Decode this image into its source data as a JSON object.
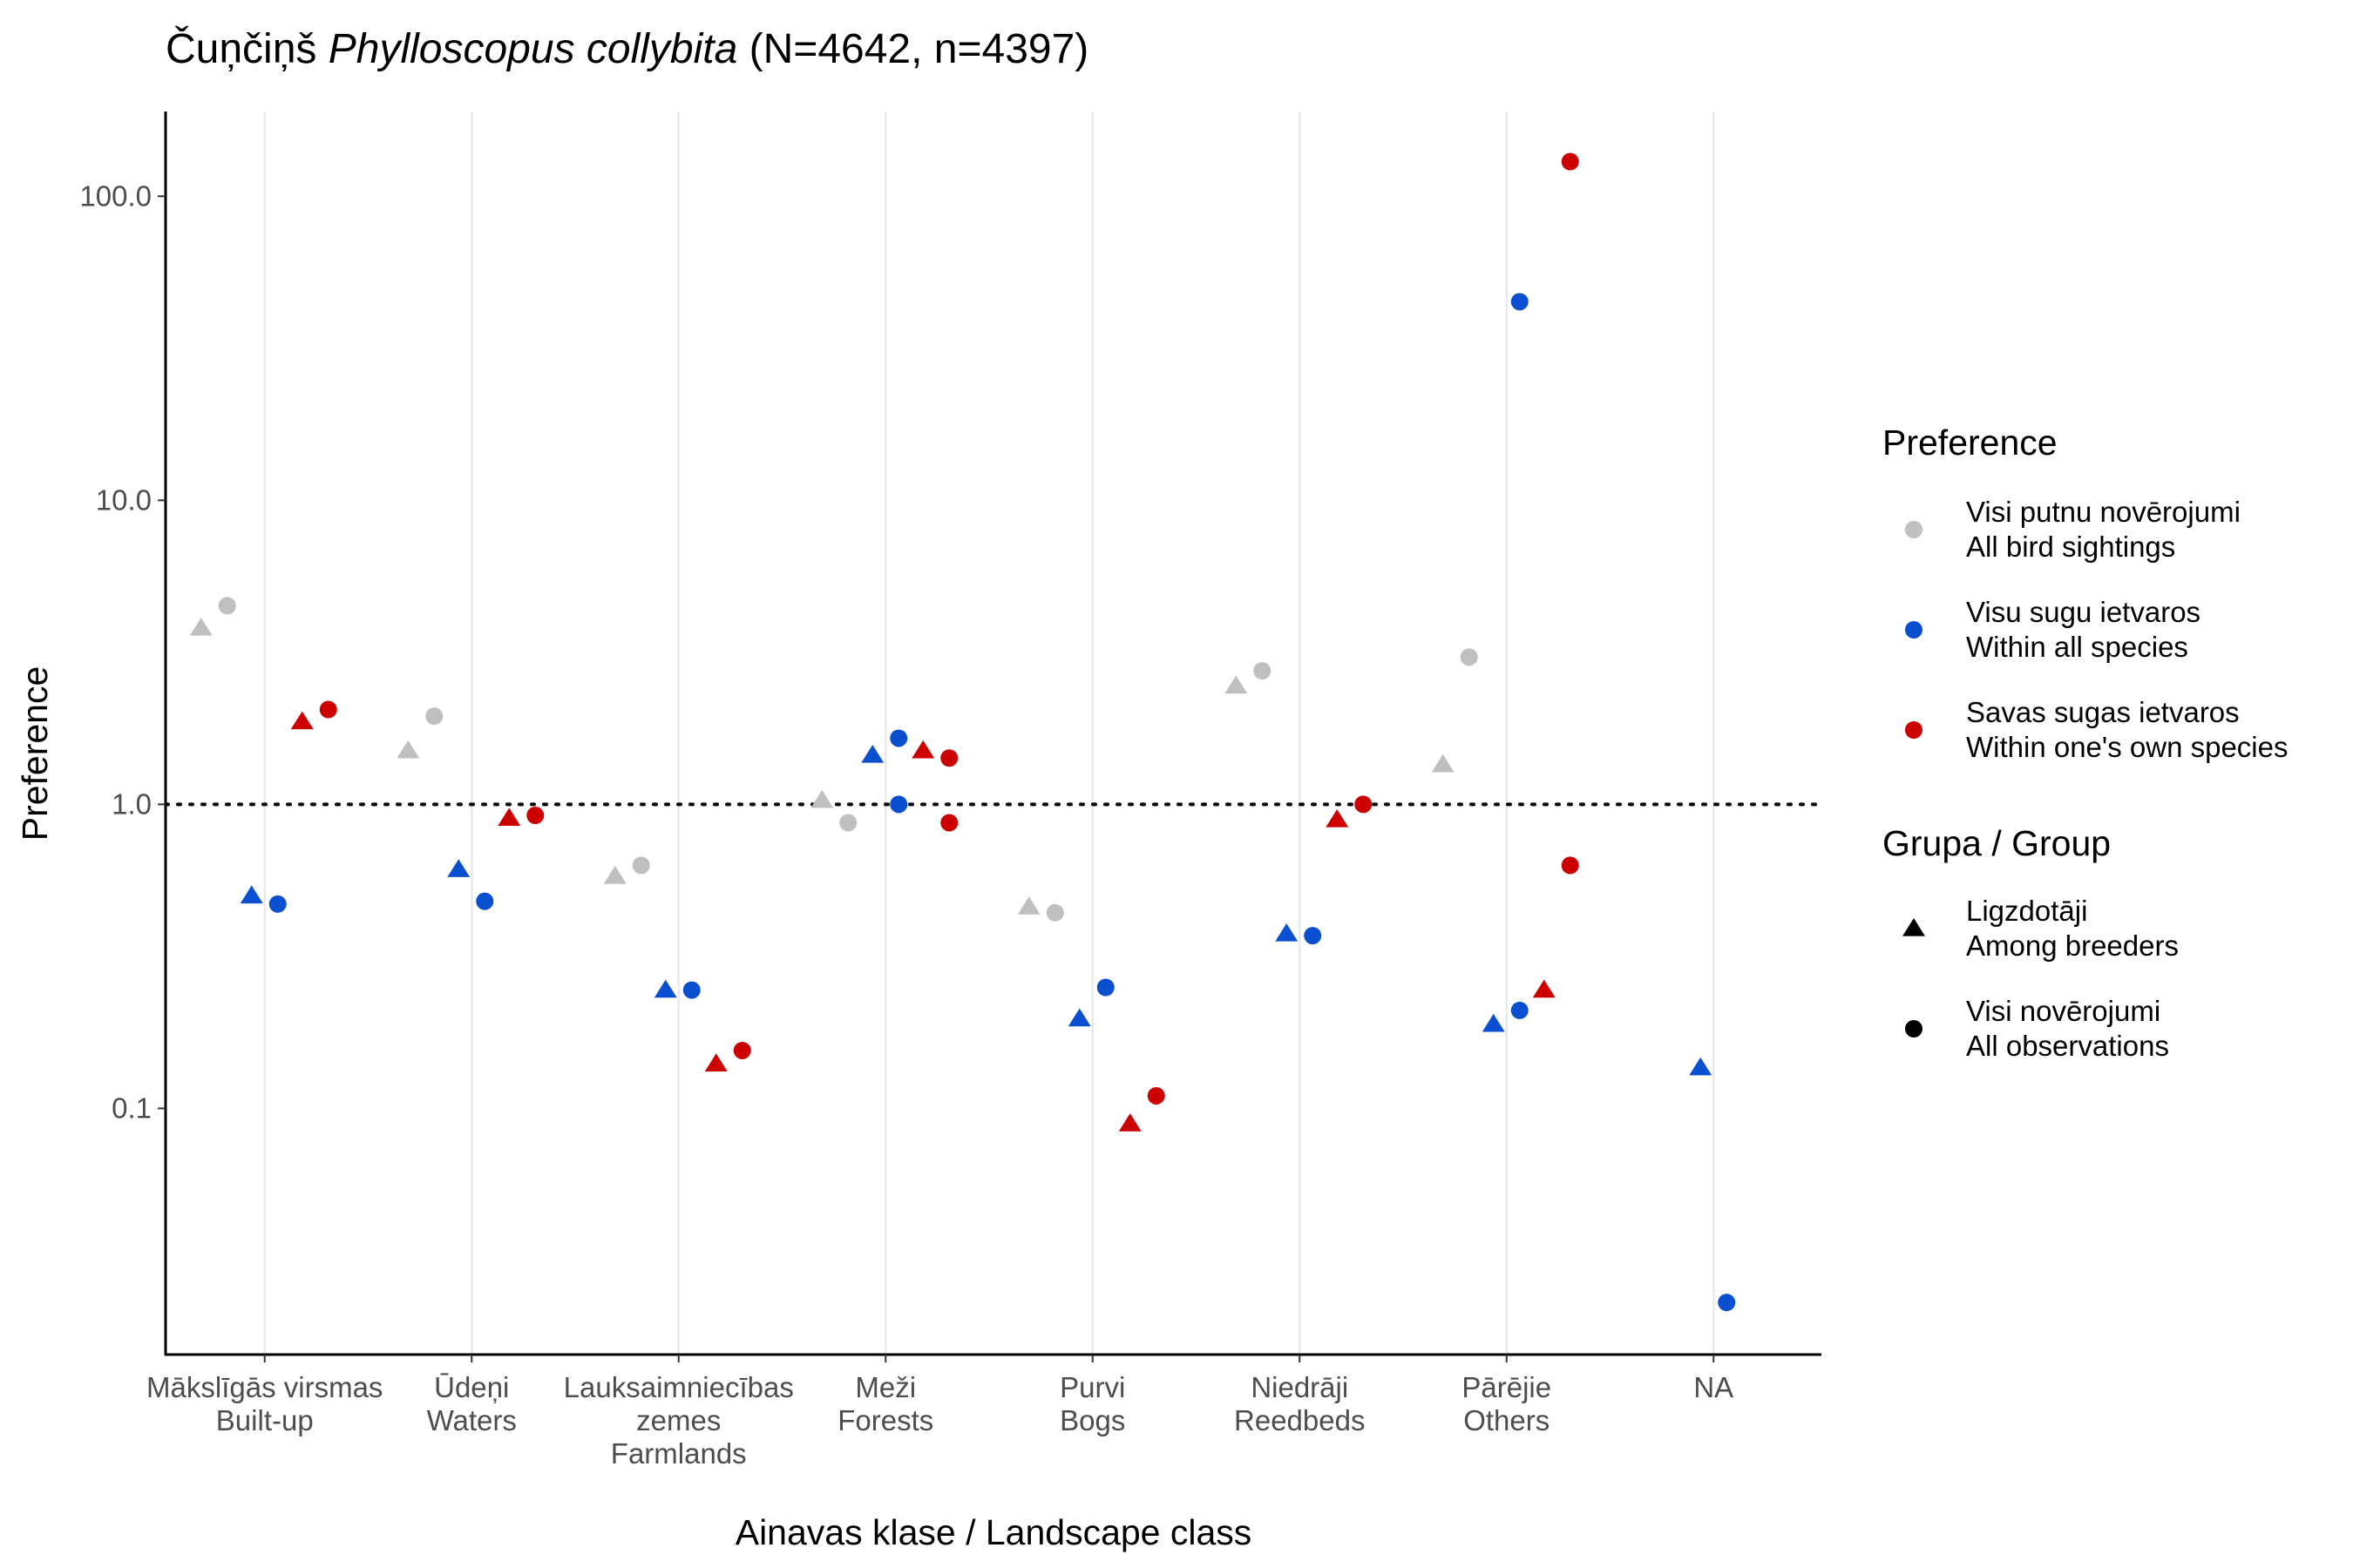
{
  "chart_data": {
    "type": "scatter",
    "title": {
      "prefix": "Čuņčiņš ",
      "italic": "Phylloscopus collybita",
      "suffix": " (N=4642, n=4397)"
    },
    "xlabel": "Ainavas klase / Landscape class",
    "ylabel": "Preference",
    "y_scale": "log10",
    "ylim": [
      0.0155,
      190
    ],
    "yticks": [
      0.1,
      1.0,
      10.0,
      100.0
    ],
    "ytick_labels": [
      "0.1",
      "1.0",
      "10.0",
      "100.0"
    ],
    "reference_line": 1.0,
    "grid": "vertical major only",
    "legend_position": "right",
    "categories": [
      [
        "Mākslīgās virsmas",
        "Built-up"
      ],
      [
        "Ūdeņi",
        "Waters"
      ],
      [
        "Lauksaimniecības",
        "zemes",
        "Farmlands"
      ],
      [
        "Meži",
        "Forests"
      ],
      [
        "Purvi",
        "Bogs"
      ],
      [
        "Niedrāji",
        "Reedbeds"
      ],
      [
        "Pārējie",
        "Others"
      ],
      [
        "NA"
      ]
    ],
    "colors": {
      "all_sightings": "#bfbfbf",
      "within_all_species": "#0a4fcf",
      "within_own_species": "#cc0000"
    },
    "series": [
      {
        "preference": "all_sightings",
        "group": "breeders",
        "points": [
          [
            0,
            3.8
          ],
          [
            1,
            1.5
          ],
          [
            2,
            0.58
          ],
          [
            3,
            1.03
          ],
          [
            4,
            0.46
          ],
          [
            5,
            2.45
          ],
          [
            6,
            1.35
          ]
        ]
      },
      {
        "preference": "all_sightings",
        "group": "all_observations",
        "points": [
          [
            0,
            4.5
          ],
          [
            1,
            1.95
          ],
          [
            2,
            0.63
          ],
          [
            3,
            0.87
          ],
          [
            4,
            0.44
          ],
          [
            5,
            2.75
          ],
          [
            6,
            3.05
          ]
        ]
      },
      {
        "preference": "within_all_species",
        "group": "breeders",
        "points": [
          [
            0,
            0.5
          ],
          [
            1,
            0.61
          ],
          [
            2,
            0.245
          ],
          [
            3,
            1.45
          ],
          [
            4,
            0.197
          ],
          [
            5,
            0.375
          ],
          [
            6,
            0.189
          ],
          [
            7,
            0.136
          ]
        ]
      },
      {
        "preference": "within_all_species",
        "group": "all_observations",
        "points": [
          [
            0,
            0.47
          ],
          [
            1,
            0.48
          ],
          [
            2,
            0.245
          ],
          [
            3,
            1.65
          ],
          [
            3,
            1.0
          ],
          [
            4,
            0.25
          ],
          [
            5,
            0.37
          ],
          [
            6,
            0.21
          ],
          [
            6,
            45
          ],
          [
            7,
            0.023
          ]
        ]
      },
      {
        "preference": "within_own_species",
        "group": "breeders",
        "points": [
          [
            0,
            1.87
          ],
          [
            1,
            0.9
          ],
          [
            2,
            0.14
          ],
          [
            3,
            1.5
          ],
          [
            4,
            0.089
          ],
          [
            5,
            0.89
          ],
          [
            6,
            0.245
          ]
        ]
      },
      {
        "preference": "within_own_species",
        "group": "all_observations",
        "points": [
          [
            0,
            2.05
          ],
          [
            1,
            0.92
          ],
          [
            2,
            0.155
          ],
          [
            3,
            1.42
          ],
          [
            3,
            0.87
          ],
          [
            4,
            0.11
          ],
          [
            5,
            1.0
          ],
          [
            6,
            0.63
          ],
          [
            6,
            130
          ]
        ]
      }
    ],
    "legend": {
      "preference_title": "Preference",
      "preference_items": [
        {
          "key": "all_sightings",
          "lines": [
            "Visi putnu novērojumi",
            "All bird sightings"
          ]
        },
        {
          "key": "within_all_species",
          "lines": [
            "Visu sugu ietvaros",
            "Within all species"
          ]
        },
        {
          "key": "within_own_species",
          "lines": [
            "Savas sugas ietvaros",
            "Within one's own species"
          ]
        }
      ],
      "group_title": "Grupa / Group",
      "group_items": [
        {
          "key": "breeders",
          "shape": "triangle",
          "lines": [
            "Ligzdotāji",
            "Among breeders"
          ]
        },
        {
          "key": "all_observations",
          "shape": "circle",
          "lines": [
            "Visi novērojumi",
            "All observations"
          ]
        }
      ]
    }
  }
}
